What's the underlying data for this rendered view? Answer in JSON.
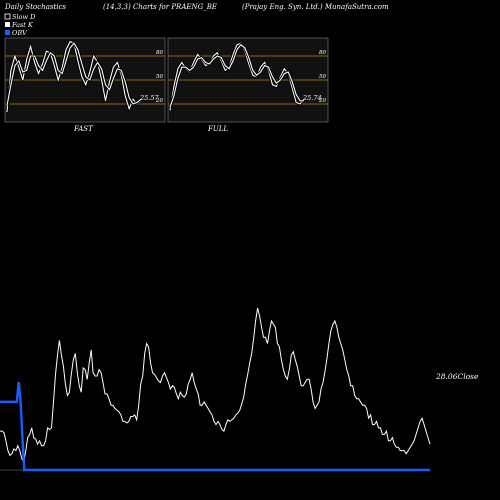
{
  "header": {
    "left": "Daily Stochastics",
    "center": "(14,3,3) Charts for PRAENG_BE",
    "right": "(Prajay Eng. Syn. Ltd.) MunafaSutra.com"
  },
  "legend": {
    "items": [
      {
        "label": "Slow D",
        "color": "#ffffff",
        "marker": "box"
      },
      {
        "label": "Fast K",
        "color": "#ffffff",
        "marker": "box-filled"
      },
      {
        "label": "OBV",
        "color": "#1e5bff",
        "marker": "box-filled"
      }
    ]
  },
  "colors": {
    "background": "#000000",
    "panel_bg": "#111111",
    "panel_border": "#666666",
    "level_line": "#b8860b",
    "stoch_line": "#ffffff",
    "price_line": "#ffffff",
    "obv_line": "#1e5bff"
  },
  "chart_data": [
    {
      "type": "line",
      "title": "FAST",
      "ylim": [
        0,
        100
      ],
      "levels": [
        80,
        50,
        20
      ],
      "level_labels": [
        "80",
        "50",
        "20"
      ],
      "last_value_label": "25.57",
      "series": [
        {
          "name": "Fast K",
          "values": [
            10,
            62,
            80,
            66,
            50,
            76,
            92,
            72,
            58,
            70,
            86,
            84,
            68,
            50,
            66,
            88,
            98,
            96,
            74,
            54,
            44,
            60,
            80,
            72,
            50,
            24,
            48,
            66,
            72,
            56,
            30,
            14,
            26,
            20,
            24
          ]
        },
        {
          "name": "Slow D",
          "values": [
            18,
            44,
            68,
            74,
            60,
            62,
            80,
            80,
            68,
            62,
            74,
            84,
            80,
            62,
            58,
            74,
            90,
            96,
            88,
            70,
            54,
            50,
            64,
            72,
            64,
            44,
            38,
            52,
            64,
            62,
            48,
            28,
            20,
            22,
            26
          ]
        }
      ]
    },
    {
      "type": "line",
      "title": "FULL",
      "ylim": [
        0,
        100
      ],
      "levels": [
        80,
        50,
        20
      ],
      "level_labels": [
        "80",
        "50",
        "20"
      ],
      "last_value_label": "25.74",
      "series": [
        {
          "name": "Full K",
          "values": [
            12,
            42,
            64,
            72,
            64,
            60,
            72,
            82,
            76,
            68,
            70,
            80,
            84,
            74,
            62,
            66,
            82,
            94,
            96,
            86,
            70,
            56,
            54,
            66,
            72,
            62,
            44,
            42,
            54,
            64,
            58,
            40,
            22,
            20,
            26
          ]
        },
        {
          "name": "Full D",
          "values": [
            16,
            30,
            52,
            66,
            66,
            62,
            66,
            76,
            78,
            72,
            70,
            76,
            80,
            78,
            68,
            64,
            74,
            88,
            94,
            90,
            78,
            62,
            56,
            60,
            68,
            66,
            54,
            46,
            50,
            58,
            60,
            48,
            32,
            24,
            24
          ]
        }
      ]
    },
    {
      "type": "line",
      "ylim": [
        0,
        100
      ],
      "price_label": "28.06",
      "price_label_suffix": "Close",
      "series": [
        {
          "name": "Close",
          "values": [
            24,
            24,
            23,
            18,
            12,
            9,
            10,
            13,
            12,
            15,
            12,
            7,
            5,
            12,
            20,
            22,
            26,
            20,
            19,
            16,
            18,
            15,
            15,
            18,
            26,
            25,
            26,
            42,
            59,
            71,
            80,
            71,
            64,
            53,
            46,
            48,
            59,
            68,
            72,
            60,
            52,
            48,
            63,
            62,
            56,
            66,
            74,
            60,
            58,
            58,
            62,
            60,
            54,
            47,
            47,
            44,
            40,
            40,
            38,
            37,
            36,
            34,
            30,
            30,
            29,
            30,
            33,
            33,
            34,
            31,
            40,
            53,
            58,
            72,
            78,
            76,
            66,
            60,
            59,
            57,
            55,
            54,
            58,
            60,
            57,
            54,
            50,
            52,
            51,
            47,
            44,
            48,
            46,
            45,
            47,
            53,
            56,
            60,
            54,
            50,
            47,
            40,
            40,
            42,
            40,
            38,
            36,
            34,
            30,
            28,
            30,
            28,
            25,
            24,
            28,
            31,
            30,
            31,
            32,
            34,
            35,
            37,
            41,
            45,
            53,
            59,
            66,
            72,
            81,
            92,
            100,
            95,
            88,
            82,
            82,
            78,
            86,
            92,
            90,
            88,
            78,
            76,
            68,
            62,
            58,
            56,
            62,
            71,
            73,
            68,
            64,
            58,
            52,
            52,
            54,
            56,
            56,
            50,
            42,
            38,
            40,
            42,
            50,
            54,
            61,
            69,
            78,
            86,
            90,
            92,
            88,
            82,
            78,
            74,
            68,
            62,
            58,
            52,
            52,
            46,
            44,
            44,
            42,
            40,
            40,
            38,
            32,
            34,
            28,
            28,
            30,
            26,
            26,
            22,
            22,
            24,
            18,
            18,
            20,
            16,
            14,
            14,
            12,
            12,
            12,
            10,
            12,
            14,
            16,
            18,
            22,
            26,
            30,
            32,
            28,
            24,
            20,
            16
          ]
        },
        {
          "name": "OBV",
          "values": [
            62,
            62,
            62,
            62,
            62,
            62,
            62,
            62,
            62,
            62,
            80,
            62,
            30,
            0,
            0,
            0,
            0,
            0,
            0,
            0,
            0,
            0,
            0,
            0,
            0,
            0,
            0,
            0,
            0,
            0,
            0,
            0,
            0,
            0,
            0,
            0,
            0,
            0,
            0,
            0,
            0,
            0,
            0,
            0,
            0,
            0,
            0,
            0,
            0,
            0,
            0,
            0,
            0,
            0,
            0,
            0,
            0,
            0,
            0,
            0,
            0,
            0,
            0,
            0,
            0,
            0,
            0,
            0,
            0,
            0,
            0,
            0,
            0,
            0,
            0,
            0,
            0,
            0,
            0,
            0,
            0,
            0,
            0,
            0,
            0,
            0,
            0,
            0,
            0,
            0,
            0,
            0,
            0,
            0,
            0,
            0,
            0,
            0,
            0,
            0,
            0,
            0,
            0,
            0,
            0,
            0,
            0,
            0,
            0,
            0,
            0,
            0,
            0,
            0,
            0,
            0,
            0,
            0,
            0,
            0,
            0,
            0,
            0,
            0,
            0,
            0,
            0,
            0,
            0,
            0,
            0,
            0,
            0,
            0,
            0,
            0,
            0,
            0,
            0,
            0,
            0,
            0,
            0,
            0,
            0,
            0,
            0,
            0,
            0,
            0,
            0,
            0,
            0,
            0,
            0,
            0,
            0,
            0,
            0,
            0,
            0,
            0,
            0,
            0,
            0,
            0,
            0,
            0,
            0,
            0,
            0,
            0,
            0,
            0,
            0,
            0,
            0,
            0,
            0,
            0,
            0,
            0,
            0,
            0,
            0,
            0,
            0,
            0,
            0,
            0,
            0,
            0,
            0,
            0,
            0,
            0,
            0,
            0,
            0,
            0,
            0,
            0,
            0,
            0,
            0,
            0,
            0,
            0,
            0,
            0,
            0,
            0,
            0,
            0,
            0,
            0,
            0,
            0,
            0,
            0,
            0,
            0,
            0,
            0,
            0,
            0,
            0,
            0,
            0,
            0,
            0
          ]
        }
      ]
    }
  ]
}
